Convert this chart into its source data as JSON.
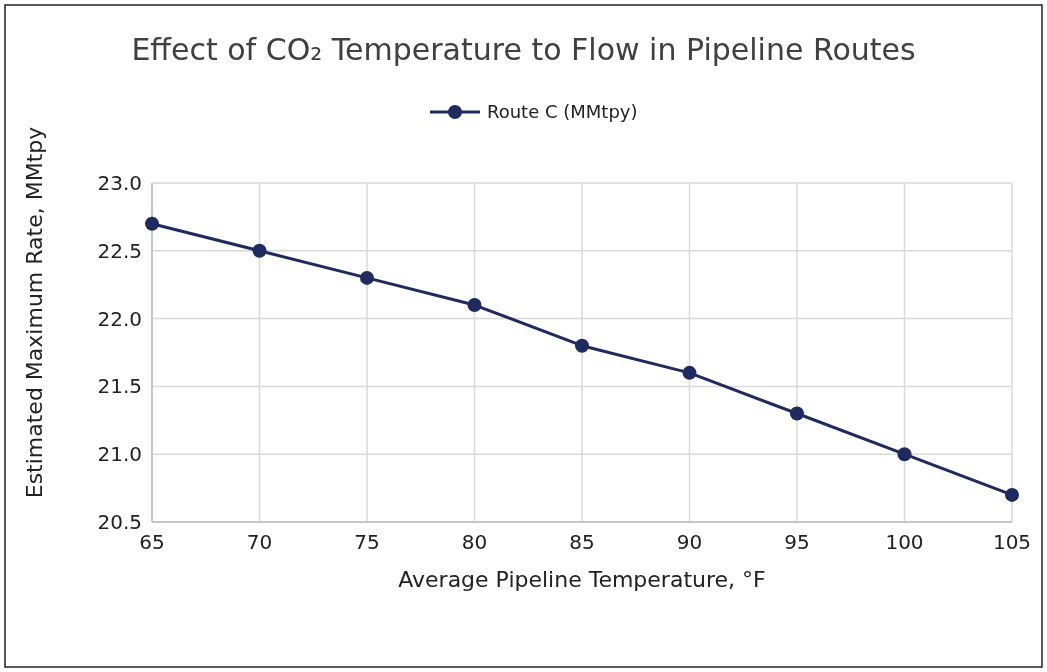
{
  "chart_data": {
    "type": "line",
    "title": "Effect of CO₂ Temperature to Flow in Pipeline Routes",
    "xlabel": "Average Pipeline Temperature, °F",
    "ylabel": "Estimated Maximum Rate, MMtpy",
    "x": [
      65,
      70,
      75,
      80,
      85,
      90,
      95,
      100,
      105
    ],
    "series": [
      {
        "name": "Route C (MMtpy)",
        "color": "#1f2a5e",
        "values": [
          22.7,
          22.5,
          22.3,
          22.1,
          21.8,
          21.6,
          21.3,
          21.0,
          20.7
        ]
      }
    ],
    "xlim": [
      65,
      105
    ],
    "xticks": [
      65,
      70,
      75,
      80,
      85,
      90,
      95,
      100,
      105
    ],
    "ylim": [
      20.5,
      23.0
    ],
    "yticks": [
      {
        "value": 20.5,
        "label": "20.5"
      },
      {
        "value": 21,
        "label": "21.0"
      },
      {
        "value": 21.5,
        "label": "21.5"
      },
      {
        "value": 22,
        "label": "22.0"
      },
      {
        "value": 22.5,
        "label": "22.5"
      },
      {
        "value": 23,
        "label": "23.0"
      }
    ],
    "grid": true,
    "legend": "top",
    "marker": "circle",
    "line_style": "solid"
  }
}
